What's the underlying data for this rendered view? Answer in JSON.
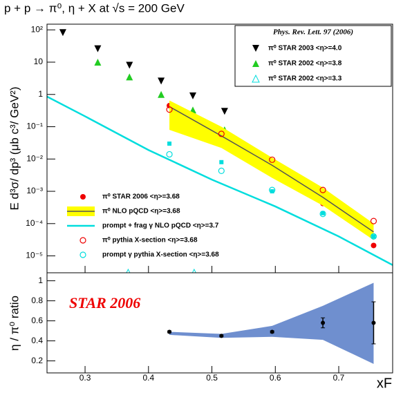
{
  "chart_data": [
    {
      "type": "scatter",
      "title": "p + p → π⁰, η + X at  √s = 200 GeV",
      "y_label": "E d³σ/ dp³ (μb c³/ GeV²)",
      "xlim": [
        0.24,
        0.785
      ],
      "xticks": [
        0.3,
        0.4,
        0.5,
        0.6,
        0.7
      ],
      "ylim": [
        3e-06,
        150
      ],
      "ylog": true,
      "yticks": [
        {
          "value": 1e-05,
          "label": "10⁻⁵"
        },
        {
          "value": 0.0001,
          "label": "10⁻⁴"
        },
        {
          "value": 0.001,
          "label": "10⁻³"
        },
        {
          "value": 0.01,
          "label": "10⁻²"
        },
        {
          "value": 0.1,
          "label": "10⁻¹"
        },
        1,
        10,
        {
          "value": 100,
          "label": "10²"
        }
      ],
      "legend_header": "Phys. Rev. Lett. 97  (2006)",
      "series": [
        {
          "name": "π⁰  STAR 2003   <η>=4.0",
          "legend": "upper-right",
          "marker": "triangle-down",
          "color": "#000000",
          "x": [
            0.265,
            0.32,
            0.37,
            0.42,
            0.47,
            0.52
          ],
          "values": [
            82,
            26,
            8,
            2.6,
            0.9,
            0.3
          ]
        },
        {
          "name": "π⁰  STAR 2002   <η>=3.8",
          "legend": "upper-right",
          "marker": "triangle-up",
          "color": "#22cc22",
          "x": [
            0.32,
            0.37,
            0.42,
            0.47,
            0.52
          ],
          "values": [
            10,
            3.5,
            1.0,
            0.33,
            0.08
          ]
        },
        {
          "name": "π⁰  STAR 2002   <η>=3.3",
          "legend": "upper-right",
          "marker": "triangle-open",
          "color": "#00dddd",
          "x": [
            0.368,
            0.472
          ],
          "values": [
            3e-06,
            3e-06
          ]
        },
        {
          "name": "π⁰  STAR 2006  <η>=3.68",
          "legend": "lower-left",
          "marker": "circle",
          "color": "#ee0000",
          "x": [
            0.433,
            0.515,
            0.595,
            0.675,
            0.755
          ],
          "values": [
            0.45,
            0.056,
            0.0055,
            0.00042,
            2.1e-05
          ]
        },
        {
          "name": "π⁰  NLO pQCD  <η>=3.68",
          "legend": "lower-left",
          "marker": "line",
          "color": "#555555",
          "band_color": "#ffff00",
          "x": [
            0.433,
            0.515,
            0.595,
            0.675,
            0.755
          ],
          "values": [
            0.42,
            0.052,
            0.0064,
            0.00065,
            5.5e-05
          ],
          "upper": [
            0.65,
            0.1,
            0.011,
            0.0013,
            0.0001
          ],
          "lower": [
            0.08,
            0.022,
            0.0026,
            0.00036,
            3.1e-05
          ]
        },
        {
          "name": "prompt + frag γ  NLO pQCD  <η>=3.7",
          "legend": "lower-left",
          "marker": "line",
          "color": "#00dddd",
          "x": [
            0.24,
            0.3,
            0.4,
            0.5,
            0.6,
            0.7,
            0.785
          ],
          "values": [
            0.86,
            0.21,
            0.019,
            0.0023,
            0.00034,
            4e-05,
            5.2e-06
          ]
        },
        {
          "name": "π⁰  pythia X-section  <η>=3.68",
          "legend": "lower-left",
          "marker": "circle-open",
          "color": "#ee0000",
          "x": [
            0.433,
            0.515,
            0.595,
            0.675,
            0.755
          ],
          "values": [
            0.34,
            0.06,
            0.0095,
            0.0011,
            0.00012
          ]
        },
        {
          "name": "prompt γ  pythia X-section  <η>=3.68",
          "legend": "lower-left",
          "marker": "circle-open",
          "color": "#00dddd",
          "x": [
            0.433,
            0.515,
            0.595,
            0.675,
            0.755
          ],
          "values": [
            0.014,
            0.0043,
            0.0011,
            0.0002,
            4e-05
          ]
        },
        {
          "marker": "square",
          "color": "#00dddd",
          "x": [
            0.433,
            0.515,
            0.595,
            0.675,
            0.755
          ],
          "values": [
            0.03,
            0.008,
            0.001,
            0.00021,
            4e-05
          ]
        }
      ]
    },
    {
      "type": "scatter",
      "y_label": "η / π⁰ ratio",
      "x_label": "xF",
      "annotation": "STAR 2006",
      "xlim": [
        0.24,
        0.785
      ],
      "xticks": [
        0.3,
        0.4,
        0.5,
        0.6,
        0.7
      ],
      "ylim": [
        0.08,
        1.08
      ],
      "yticks": [
        0.2,
        0.4,
        0.6,
        0.8,
        1
      ],
      "band": {
        "color": "#6f8fcf",
        "x": [
          0.433,
          0.515,
          0.595,
          0.675,
          0.755
        ],
        "upper": [
          0.49,
          0.47,
          0.55,
          0.75,
          0.98
        ],
        "lower": [
          0.46,
          0.43,
          0.44,
          0.41,
          0.17
        ]
      },
      "series": [
        {
          "color": "#000000",
          "x": [
            0.433,
            0.515,
            0.595,
            0.675,
            0.755
          ],
          "values": [
            0.49,
            0.45,
            0.49,
            0.58,
            0.58
          ],
          "errors": [
            0.01,
            0.01,
            0.01,
            0.05,
            0.21
          ]
        }
      ]
    }
  ]
}
